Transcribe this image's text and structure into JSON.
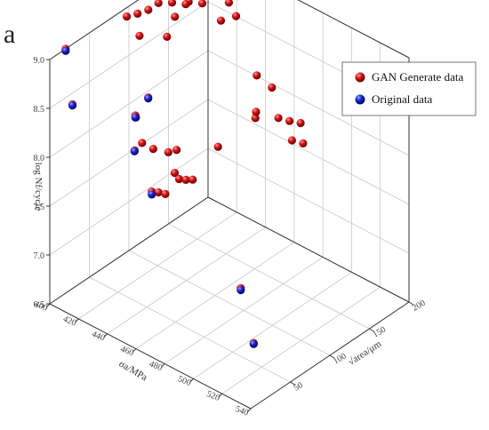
{
  "panel_label": "a",
  "chart_data": {
    "type": "scatter",
    "projection": "3d",
    "axes": {
      "x": {
        "label": "σa/MPa",
        "ticks": [
          "400",
          "420",
          "440",
          "460",
          "480",
          "500",
          "520",
          "540"
        ],
        "range": [
          400,
          540
        ]
      },
      "y": {
        "label": "√area/μm",
        "ticks": [
          "50",
          "100",
          "150",
          "200"
        ],
        "range": [
          0,
          200
        ]
      },
      "z": {
        "label": "log Nf/cycle",
        "ticks": [
          "6.5",
          "7.0",
          "7.5",
          "8.0",
          "8.5",
          "9.0"
        ],
        "range": [
          6.5,
          9.0
        ]
      }
    },
    "grid": true,
    "legend_position": "top-right",
    "series": [
      {
        "name": "GAN Generate data",
        "color": "#d41414",
        "points": [
          {
            "x": 400,
            "y": 20,
            "z": 9.0
          },
          {
            "x": 402,
            "y": 25,
            "z": 8.42
          },
          {
            "x": 404,
            "y": 90,
            "z": 8.98
          },
          {
            "x": 406,
            "y": 100,
            "z": 8.97
          },
          {
            "x": 408,
            "y": 110,
            "z": 8.97
          },
          {
            "x": 414,
            "y": 88,
            "z": 8.87
          },
          {
            "x": 404,
            "y": 130,
            "z": 8.9
          },
          {
            "x": 408,
            "y": 140,
            "z": 8.88
          },
          {
            "x": 414,
            "y": 150,
            "z": 8.88
          },
          {
            "x": 412,
            "y": 150,
            "z": 8.84
          },
          {
            "x": 418,
            "y": 160,
            "z": 8.84
          },
          {
            "x": 410,
            "y": 140,
            "z": 8.75
          },
          {
            "x": 420,
            "y": 190,
            "z": 8.7
          },
          {
            "x": 410,
            "y": 130,
            "z": 8.6
          },
          {
            "x": 420,
            "y": 180,
            "z": 8.57
          },
          {
            "x": 425,
            "y": 190,
            "z": 8.6
          },
          {
            "x": 430,
            "y": 70,
            "z": 8.46
          },
          {
            "x": 432,
            "y": 50,
            "z": 8.4
          },
          {
            "x": 438,
            "y": 40,
            "z": 8.48
          },
          {
            "x": 448,
            "y": 20,
            "z": 8.33
          },
          {
            "x": 445,
            "y": 35,
            "z": 8.3
          },
          {
            "x": 450,
            "y": 40,
            "z": 8.25
          },
          {
            "x": 455,
            "y": 50,
            "z": 8.2
          },
          {
            "x": 458,
            "y": 55,
            "z": 8.22
          },
          {
            "x": 465,
            "y": 40,
            "z": 8.12
          },
          {
            "x": 468,
            "y": 40,
            "z": 8.08
          },
          {
            "x": 470,
            "y": 45,
            "z": 8.06
          },
          {
            "x": 472,
            "y": 50,
            "z": 8.05
          },
          {
            "x": 460,
            "y": 20,
            "z": 8.0
          },
          {
            "x": 462,
            "y": 25,
            "z": 7.98
          },
          {
            "x": 464,
            "y": 30,
            "z": 7.95
          },
          {
            "x": 445,
            "y": 180,
            "z": 8.2
          },
          {
            "x": 450,
            "y": 190,
            "z": 8.06
          },
          {
            "x": 455,
            "y": 160,
            "z": 7.95
          },
          {
            "x": 450,
            "y": 170,
            "z": 7.92
          },
          {
            "x": 460,
            "y": 180,
            "z": 7.88
          },
          {
            "x": 465,
            "y": 185,
            "z": 7.86
          },
          {
            "x": 470,
            "y": 190,
            "z": 7.85
          },
          {
            "x": 475,
            "y": 170,
            "z": 7.82
          },
          {
            "x": 480,
            "y": 175,
            "z": 7.8
          },
          {
            "x": 440,
            "y": 140,
            "z": 7.65
          },
          {
            "x": 500,
            "y": 60,
            "z": 7.1
          },
          {
            "x": 520,
            "y": 40,
            "z": 6.8
          }
        ]
      },
      {
        "name": "Original data",
        "color": "#1a23cf",
        "points": [
          {
            "x": 400,
            "y": 20,
            "z": 8.98
          },
          {
            "x": 402,
            "y": 25,
            "z": 8.41
          },
          {
            "x": 430,
            "y": 70,
            "z": 8.45
          },
          {
            "x": 432,
            "y": 50,
            "z": 8.38
          },
          {
            "x": 448,
            "y": 20,
            "z": 8.32
          },
          {
            "x": 460,
            "y": 20,
            "z": 7.97
          },
          {
            "x": 500,
            "y": 60,
            "z": 7.08
          },
          {
            "x": 520,
            "y": 40,
            "z": 6.79
          }
        ]
      }
    ]
  }
}
